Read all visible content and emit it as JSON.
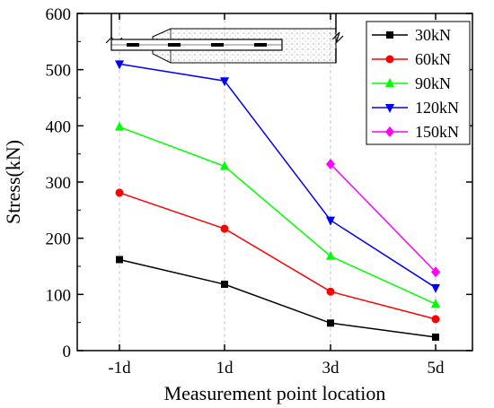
{
  "chart_data": {
    "type": "line",
    "title": "",
    "xlabel": "Measurement point location",
    "ylabel": "Stress(kN)",
    "categories": [
      "-1d",
      "1d",
      "3d",
      "5d"
    ],
    "ylim": [
      0,
      600
    ],
    "yticks": [
      0,
      100,
      200,
      300,
      400,
      500,
      600
    ],
    "grid": "vertical dashed",
    "legend_position": "top-right",
    "series": [
      {
        "name": "30kN",
        "color": "#000000",
        "marker": "square",
        "values": [
          162,
          118,
          49,
          24
        ]
      },
      {
        "name": "60kN",
        "color": "#ff0000",
        "marker": "circle",
        "values": [
          281,
          217,
          105,
          56
        ]
      },
      {
        "name": "90kN",
        "color": "#00ff00",
        "marker": "triangle-up",
        "values": [
          398,
          328,
          168,
          83
        ]
      },
      {
        "name": "120kN",
        "color": "#0000ff",
        "marker": "triangle-down",
        "values": [
          510,
          480,
          232,
          112
        ]
      },
      {
        "name": "150kN",
        "color": "#ff00ff",
        "marker": "diamond",
        "values": [
          null,
          null,
          332,
          140
        ]
      }
    ],
    "inset": "anchor-schematic"
  }
}
